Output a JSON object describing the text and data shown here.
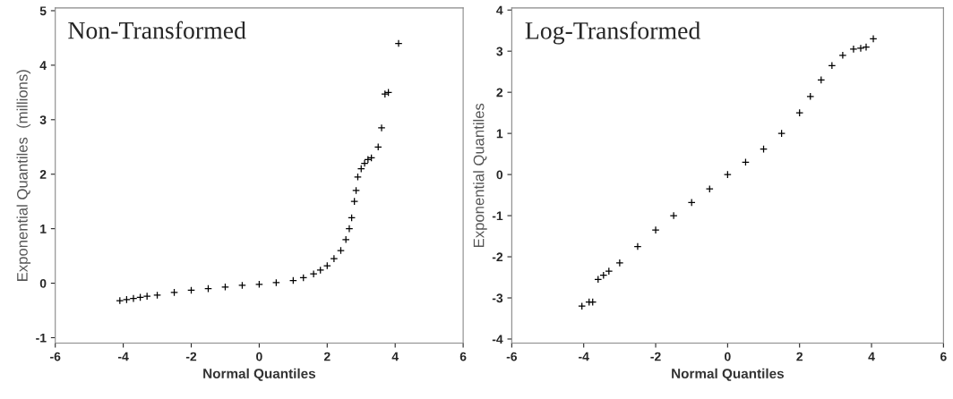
{
  "chart_data": [
    {
      "type": "scatter",
      "title": "Non-Transformed",
      "xlabel": "Normal Quantiles",
      "ylabel": "Exponential Quantiles  (millions)",
      "marker": "cross",
      "grid": false,
      "legend": false,
      "xlim": [
        -6,
        6
      ],
      "xticks": [
        -6,
        -4,
        -2,
        0,
        2,
        4,
        6
      ],
      "ylim": [
        -1.1,
        5.05
      ],
      "yticks": [
        -1,
        0,
        1,
        2,
        3,
        4,
        5
      ],
      "series": [
        {
          "color": "#000000",
          "x": [
            -4.1,
            -3.9,
            -3.7,
            -3.5,
            -3.3,
            -3,
            -2.5,
            -2,
            -1.5,
            -1,
            -0.5,
            0,
            0.5,
            1,
            1.3,
            1.6,
            1.8,
            2,
            2.2,
            2.4,
            2.55,
            2.65,
            2.72,
            2.8,
            2.85,
            2.9,
            3.0,
            3.1,
            3.2,
            3.3,
            3.5,
            3.6,
            3.7,
            3.8,
            4.1
          ],
          "values": [
            -0.32,
            -0.3,
            -0.28,
            -0.26,
            -0.24,
            -0.22,
            -0.17,
            -0.13,
            -0.1,
            -0.07,
            -0.04,
            -0.02,
            0.01,
            0.05,
            0.1,
            0.17,
            0.24,
            0.32,
            0.45,
            0.6,
            0.8,
            1.0,
            1.2,
            1.5,
            1.7,
            1.95,
            2.1,
            2.2,
            2.27,
            2.3,
            2.5,
            2.85,
            3.47,
            3.5,
            4.4
          ]
        }
      ]
    },
    {
      "type": "scatter",
      "title": "Log-Transformed",
      "xlabel": "Normal Quantiles",
      "ylabel": "Exponential Quantiles",
      "marker": "cross",
      "grid": false,
      "legend": false,
      "xlim": [
        -6,
        6
      ],
      "xticks": [
        -6,
        -4,
        -2,
        0,
        2,
        4,
        6
      ],
      "ylim": [
        -4.1,
        4.05
      ],
      "yticks": [
        -4,
        -3,
        -2,
        -1,
        0,
        1,
        2,
        3,
        4
      ],
      "series": [
        {
          "color": "#000000",
          "x": [
            -4.05,
            -3.85,
            -3.75,
            -3.6,
            -3.45,
            -3.3,
            -3,
            -2.5,
            -2,
            -1.5,
            -1,
            -0.5,
            0,
            0.5,
            1,
            1.5,
            2,
            2.3,
            2.6,
            2.9,
            3.2,
            3.5,
            3.7,
            3.85,
            4.05
          ],
          "values": [
            -3.2,
            -3.1,
            -3.1,
            -2.55,
            -2.45,
            -2.35,
            -2.15,
            -1.75,
            -1.35,
            -1.0,
            -0.68,
            -0.35,
            0,
            0.3,
            0.62,
            1.0,
            1.5,
            1.9,
            2.3,
            2.65,
            2.9,
            3.05,
            3.07,
            3.1,
            3.3
          ]
        }
      ]
    }
  ]
}
